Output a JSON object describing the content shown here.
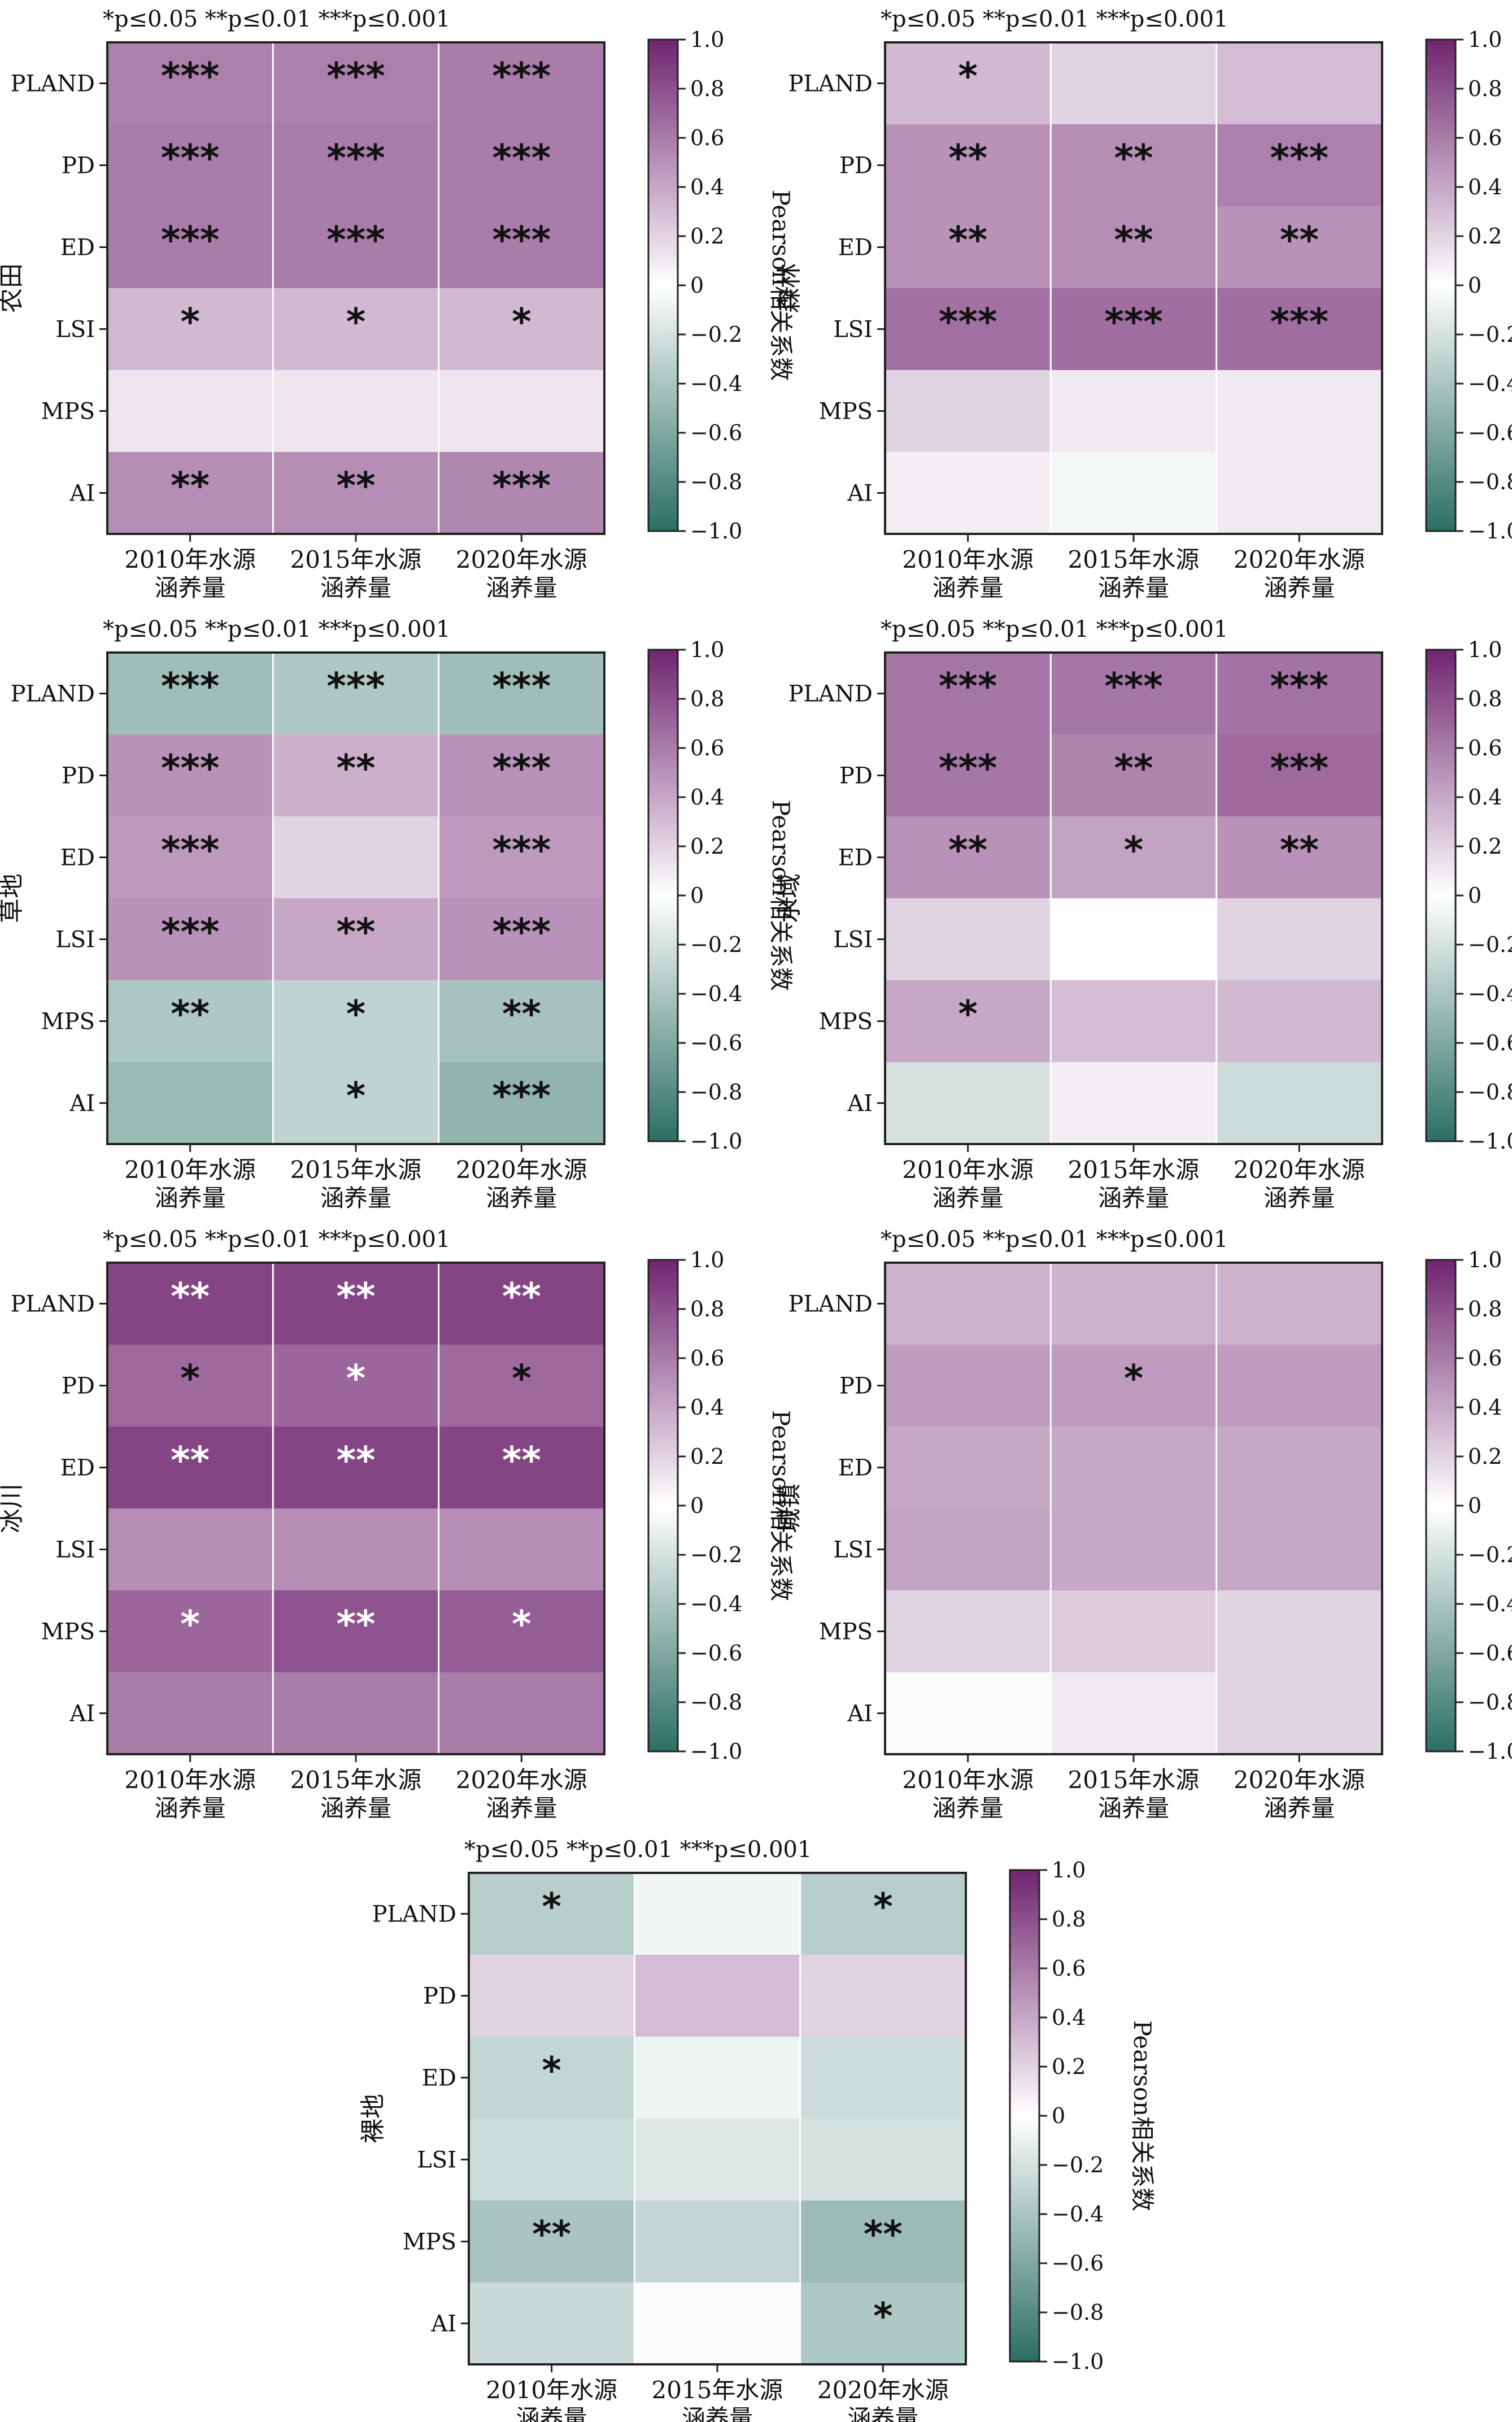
{
  "legend_text": {
    "p05": "*p≤0.05",
    "p01": "**p≤0.01",
    "p001": "***p≤0.001"
  },
  "colorbar_label": "Pearson相关系数",
  "colorbar_ticks": [
    "1.0",
    "0.8",
    "0.6",
    "0.4",
    "0.2",
    "0",
    "−0.2",
    "−0.4",
    "−0.6",
    "−0.8",
    "−1.0"
  ],
  "chart_data": [
    {
      "type": "heatmap",
      "ylabel": "农田",
      "rows": [
        "PLAND",
        "PD",
        "ED",
        "LSI",
        "MPS",
        "AI"
      ],
      "columns": [
        "2010年水源\n涵养量",
        "2015年水源\n涵养量",
        "2020年水源\n涵养量"
      ],
      "values": [
        [
          0.58,
          0.58,
          0.6
        ],
        [
          0.6,
          0.6,
          0.6
        ],
        [
          0.6,
          0.6,
          0.6
        ],
        [
          0.32,
          0.32,
          0.32
        ],
        [
          0.12,
          0.12,
          0.12
        ],
        [
          0.52,
          0.52,
          0.55
        ]
      ],
      "significance": [
        [
          "***",
          "***",
          "***"
        ],
        [
          "***",
          "***",
          "***"
        ],
        [
          "***",
          "***",
          "***"
        ],
        [
          "*",
          "*",
          "*"
        ],
        [
          "",
          "",
          ""
        ],
        [
          "**",
          "**",
          "***"
        ]
      ],
      "vmin": -1.0,
      "vmax": 1.0
    },
    {
      "type": "heatmap",
      "ylabel": "森林",
      "rows": [
        "PLAND",
        "PD",
        "ED",
        "LSI",
        "MPS",
        "AI"
      ],
      "columns": [
        "2010年水源\n涵养量",
        "2015年水源\n涵养量",
        "2020年水源\n涵养量"
      ],
      "values": [
        [
          0.32,
          0.2,
          0.3
        ],
        [
          0.5,
          0.52,
          0.58
        ],
        [
          0.5,
          0.52,
          0.5
        ],
        [
          0.65,
          0.66,
          0.66
        ],
        [
          0.2,
          0.1,
          0.1
        ],
        [
          0.08,
          -0.05,
          0.1
        ]
      ],
      "significance": [
        [
          "*",
          "",
          ""
        ],
        [
          "**",
          "**",
          "***"
        ],
        [
          "**",
          "**",
          "**"
        ],
        [
          "***",
          "***",
          "***"
        ],
        [
          "",
          "",
          ""
        ],
        [
          "",
          "",
          ""
        ]
      ],
      "vmin": -1.0,
      "vmax": 1.0
    },
    {
      "type": "heatmap",
      "ylabel": "草地",
      "rows": [
        "PLAND",
        "PD",
        "ED",
        "LSI",
        "MPS",
        "AI"
      ],
      "columns": [
        "2010年水源\n涵养量",
        "2015年水源\n涵养量",
        "2020年水源\n涵养量"
      ],
      "values": [
        [
          -0.45,
          -0.38,
          -0.45
        ],
        [
          0.5,
          0.36,
          0.5
        ],
        [
          0.46,
          0.2,
          0.46
        ],
        [
          0.5,
          0.4,
          0.5
        ],
        [
          -0.38,
          -0.3,
          -0.42
        ],
        [
          -0.48,
          -0.3,
          -0.52
        ]
      ],
      "significance": [
        [
          "***",
          "***",
          "***"
        ],
        [
          "***",
          "**",
          "***"
        ],
        [
          "***",
          "",
          "***"
        ],
        [
          "***",
          "**",
          "***"
        ],
        [
          "**",
          "*",
          "**"
        ],
        [
          "",
          "*",
          "***"
        ]
      ],
      "vmin": -1.0,
      "vmax": 1.0
    },
    {
      "type": "heatmap",
      "ylabel": "水域",
      "rows": [
        "PLAND",
        "PD",
        "ED",
        "LSI",
        "MPS",
        "AI"
      ],
      "columns": [
        "2010年水源\n涵养量",
        "2015年水源\n涵养量",
        "2020年水源\n涵养量"
      ],
      "values": [
        [
          0.62,
          0.62,
          0.64
        ],
        [
          0.62,
          0.56,
          0.68
        ],
        [
          0.5,
          0.42,
          0.5
        ],
        [
          0.2,
          0.0,
          0.2
        ],
        [
          0.4,
          0.3,
          0.32
        ],
        [
          -0.2,
          0.08,
          -0.24
        ]
      ],
      "significance": [
        [
          "***",
          "***",
          "***"
        ],
        [
          "***",
          "**",
          "***"
        ],
        [
          "**",
          "*",
          "**"
        ],
        [
          "",
          "",
          ""
        ],
        [
          "*",
          "",
          ""
        ],
        [
          "",
          "",
          ""
        ]
      ],
      "vmin": -1.0,
      "vmax": 1.0
    },
    {
      "type": "heatmap",
      "ylabel": "冰川",
      "rows": [
        "PLAND",
        "PD",
        "ED",
        "LSI",
        "MPS",
        "AI"
      ],
      "columns": [
        "2010年水源\n涵养量",
        "2015年水源\n涵养量",
        "2020年水源\n涵养量"
      ],
      "values": [
        [
          0.85,
          0.85,
          0.85
        ],
        [
          0.68,
          0.7,
          0.68
        ],
        [
          0.85,
          0.85,
          0.85
        ],
        [
          0.52,
          0.52,
          0.52
        ],
        [
          0.7,
          0.78,
          0.74
        ],
        [
          0.6,
          0.6,
          0.6
        ]
      ],
      "significance": [
        [
          "**",
          "**",
          "**"
        ],
        [
          "*",
          "*",
          "*"
        ],
        [
          "**",
          "**",
          "**"
        ],
        [
          "",
          "",
          ""
        ],
        [
          "*",
          "**",
          "*"
        ],
        [
          "",
          "",
          ""
        ]
      ],
      "vmin": -1.0,
      "vmax": 1.0
    },
    {
      "type": "heatmap",
      "ylabel": "城镇",
      "rows": [
        "PLAND",
        "PD",
        "ED",
        "LSI",
        "MPS",
        "AI"
      ],
      "columns": [
        "2010年水源\n涵养量",
        "2015年水源\n涵养量",
        "2020年水源\n涵养量"
      ],
      "values": [
        [
          0.35,
          0.35,
          0.35
        ],
        [
          0.45,
          0.45,
          0.45
        ],
        [
          0.4,
          0.4,
          0.4
        ],
        [
          0.42,
          0.4,
          0.4
        ],
        [
          0.2,
          0.24,
          0.2
        ],
        [
          0.02,
          0.1,
          0.2
        ]
      ],
      "significance": [
        [
          "",
          "",
          ""
        ],
        [
          "",
          "*",
          ""
        ],
        [
          "",
          "",
          ""
        ],
        [
          "",
          "",
          ""
        ],
        [
          "",
          "",
          ""
        ],
        [
          "",
          "",
          ""
        ]
      ],
      "vmin": -1.0,
      "vmax": 1.0
    },
    {
      "type": "heatmap",
      "ylabel": "裸地",
      "rows": [
        "PLAND",
        "PD",
        "ED",
        "LSI",
        "MPS",
        "AI"
      ],
      "columns": [
        "2010年水源\n涵养量",
        "2015年水源\n涵养量",
        "2020年水源\n涵养量"
      ],
      "values": [
        [
          -0.34,
          -0.06,
          -0.34
        ],
        [
          0.2,
          0.3,
          0.2
        ],
        [
          -0.28,
          -0.08,
          -0.24
        ],
        [
          -0.24,
          -0.16,
          -0.2
        ],
        [
          -0.4,
          -0.28,
          -0.46
        ],
        [
          -0.26,
          0.02,
          -0.38
        ]
      ],
      "significance": [
        [
          "*",
          "",
          "*"
        ],
        [
          "",
          "",
          ""
        ],
        [
          "*",
          "",
          ""
        ],
        [
          "",
          "",
          ""
        ],
        [
          "**",
          "",
          "**"
        ],
        [
          "",
          "",
          "*"
        ]
      ],
      "vmin": -1.0,
      "vmax": 1.0
    }
  ]
}
